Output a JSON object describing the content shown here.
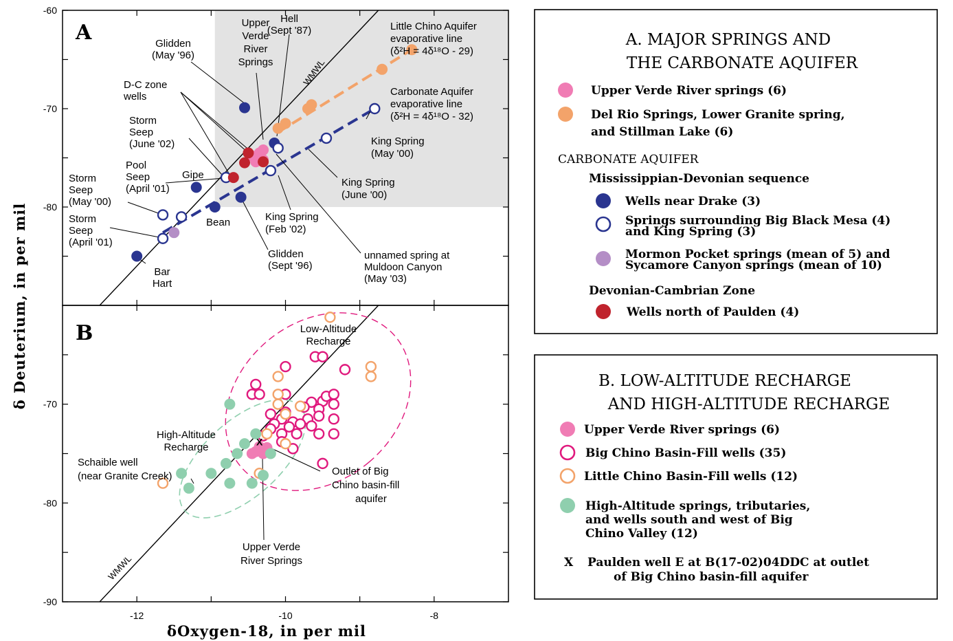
{
  "chart_data": [
    {
      "panel": "A",
      "type": "scatter",
      "ylabel": "δ Deuterium, in per mil",
      "xlim": [
        -13,
        -7
      ],
      "ylim": [
        -90,
        -60
      ],
      "y_ticks": [
        "-60",
        "-70",
        "-80"
      ],
      "shaded_region": {
        "x": [
          -10.95,
          -7
        ],
        "y": [
          -80,
          -60
        ]
      },
      "wmwl_label": "WMWL",
      "series": [
        {
          "name": "Upper Verde River springs (6)",
          "color": "#f07cb4",
          "marker": "filled",
          "points": [
            [
              -10.35,
              -74.5
            ],
            [
              -10.3,
              -74.2
            ],
            [
              -10.45,
              -74.8
            ],
            [
              -10.3,
              -75.2
            ],
            [
              -10.4,
              -75.4
            ],
            [
              -10.35,
              -75.0
            ]
          ]
        },
        {
          "name": "Del Rio Springs, Lower Granite spring, and Stillman Lake (6)",
          "color": "#f3a36a",
          "marker": "filled",
          "points": [
            [
              -10.1,
              -72.0
            ],
            [
              -10.0,
              -71.5
            ],
            [
              -9.7,
              -70.0
            ],
            [
              -9.65,
              -69.6
            ],
            [
              -8.7,
              -66.0
            ],
            [
              -8.3,
              -64.0
            ]
          ]
        },
        {
          "name": "Wells near Drake (3)",
          "color": "#2a3590",
          "marker": "filled",
          "points": [
            [
              -10.55,
              -69.9
            ],
            [
              -10.15,
              -73.5
            ],
            [
              -11.2,
              -78.0
            ],
            [
              -10.95,
              -80.0
            ],
            [
              -10.6,
              -79.0
            ],
            [
              -12.0,
              -85.0
            ]
          ]
        },
        {
          "name": "Springs surrounding Big Black Mesa (4) and King Spring (3)",
          "color": "#2a3590",
          "marker": "open",
          "points": [
            [
              -8.8,
              -70.0
            ],
            [
              -9.45,
              -73.0
            ],
            [
              -10.1,
              -74.0
            ],
            [
              -10.2,
              -76.3
            ],
            [
              -10.8,
              -77.0
            ],
            [
              -11.65,
              -80.8
            ],
            [
              -11.4,
              -81.0
            ],
            [
              -11.65,
              -83.2
            ]
          ]
        },
        {
          "name": "Mormon Pocket springs (mean of 5) and Sycamore Canyon springs (mean of 10)",
          "color": "#b48ec6",
          "marker": "filled",
          "points": [
            [
              -11.5,
              -82.6
            ]
          ]
        },
        {
          "name": "Wells north of Paulden (4)",
          "color": "#c0232d",
          "marker": "filled",
          "points": [
            [
              -10.5,
              -74.5
            ],
            [
              -10.55,
              -75.5
            ],
            [
              -10.3,
              -75.4
            ],
            [
              -10.7,
              -77.0
            ]
          ]
        }
      ],
      "lines": [
        {
          "name": "Little Chino Aquifer evaporative line",
          "color": "#f3a36a",
          "points": [
            [
              -10.1,
              -72.4
            ],
            [
              -8.3,
              -64.0
            ]
          ]
        },
        {
          "name": "Carbonate Aquifer evaporative line",
          "color": "#2a3590",
          "points": [
            [
              -11.65,
              -82.6
            ],
            [
              -8.8,
              -70.0
            ]
          ]
        }
      ],
      "annotations": [
        {
          "lines": [
            "Glidden",
            "(May '96)"
          ]
        },
        {
          "lines": [
            "Upper",
            "Verde",
            "River",
            "Springs"
          ]
        },
        {
          "lines": [
            "Hell",
            "(Sept '87)"
          ]
        },
        {
          "lines": [
            "Little Chino Aquifer",
            "evaporative line",
            "(δ²H = 4δ¹⁸O - 29)"
          ]
        },
        {
          "lines": [
            "D-C zone",
            "wells"
          ]
        },
        {
          "lines": [
            "Carbonate Aquifer",
            "evaporative line",
            "(δ²H = 4δ¹⁸O - 32)"
          ]
        },
        {
          "lines": [
            "Storm",
            "Seep",
            "(June '02)"
          ]
        },
        {
          "lines": [
            "King Spring",
            "(May '00)"
          ]
        },
        {
          "lines": [
            "Pool",
            "Seep",
            "(April '01)"
          ]
        },
        {
          "lines": [
            "Gipe"
          ]
        },
        {
          "lines": [
            "Storm",
            "Seep",
            "(May '00)"
          ]
        },
        {
          "lines": [
            "King Spring",
            "(June '00)"
          ]
        },
        {
          "lines": [
            "Bean"
          ]
        },
        {
          "lines": [
            "King Spring",
            "(Feb '02)"
          ]
        },
        {
          "lines": [
            "Storm",
            "Seep",
            "(April '01)"
          ]
        },
        {
          "lines": [
            "unnamed spring at",
            "Muldoon Canyon",
            "(May '03)"
          ]
        },
        {
          "lines": [
            "Glidden",
            "(Sept '96)"
          ]
        },
        {
          "lines": [
            "Bar",
            "Hart"
          ]
        }
      ]
    },
    {
      "panel": "B",
      "type": "scatter",
      "xlabel": "δOxygen-18, in per mil",
      "xlim": [
        -13,
        -7
      ],
      "ylim": [
        -90,
        -60
      ],
      "x_ticks": [
        "-12",
        "-10",
        "-8"
      ],
      "y_ticks": [
        "-70",
        "-80",
        "-90"
      ],
      "wmwl_label": "WMWL",
      "series": [
        {
          "name": "Upper Verde River springs (6)",
          "color": "#f07cb4",
          "marker": "filled",
          "points": [
            [
              -10.35,
              -74.3
            ],
            [
              -10.3,
              -74.6
            ],
            [
              -10.45,
              -75.0
            ],
            [
              -10.3,
              -75.0
            ],
            [
              -10.4,
              -74.8
            ],
            [
              -10.25,
              -74.4
            ]
          ]
        },
        {
          "name": "Big Chino Basin-Fill wells (35)",
          "color": "#e0197d",
          "marker": "open",
          "points": [
            [
              -9.6,
              -65.2
            ],
            [
              -9.5,
              -65.2
            ],
            [
              -10.0,
              -66.2
            ],
            [
              -9.2,
              -66.5
            ],
            [
              -10.4,
              -68.0
            ],
            [
              -10.45,
              -69.0
            ],
            [
              -10.35,
              -69.0
            ],
            [
              -10.0,
              -69.0
            ],
            [
              -9.65,
              -69.8
            ],
            [
              -9.5,
              -69.7
            ],
            [
              -9.45,
              -69.2
            ],
            [
              -9.35,
              -69.0
            ],
            [
              -9.35,
              -70.0
            ],
            [
              -9.55,
              -70.5
            ],
            [
              -9.75,
              -70.3
            ],
            [
              -10.0,
              -70.8
            ],
            [
              -10.2,
              -71.0
            ],
            [
              -10.05,
              -71.5
            ],
            [
              -9.9,
              -71.8
            ],
            [
              -9.7,
              -71.5
            ],
            [
              -9.55,
              -71.2
            ],
            [
              -9.35,
              -71.5
            ],
            [
              -10.15,
              -72.0
            ],
            [
              -9.95,
              -72.3
            ],
            [
              -9.8,
              -72.0
            ],
            [
              -9.65,
              -72.2
            ],
            [
              -10.2,
              -72.5
            ],
            [
              -10.05,
              -73.0
            ],
            [
              -9.85,
              -73.0
            ],
            [
              -9.55,
              -73.0
            ],
            [
              -9.35,
              -73.0
            ],
            [
              -10.3,
              -73.2
            ],
            [
              -10.05,
              -73.8
            ],
            [
              -9.9,
              -74.5
            ],
            [
              -9.5,
              -76.0
            ]
          ]
        },
        {
          "name": "Little Chino Basin-Fill wells (12)",
          "color": "#f3a36a",
          "marker": "open",
          "points": [
            [
              -9.4,
              -61.2
            ],
            [
              -8.85,
              -66.2
            ],
            [
              -8.85,
              -67.2
            ],
            [
              -10.1,
              -67.2
            ],
            [
              -10.1,
              -69.0
            ],
            [
              -10.1,
              -70.0
            ],
            [
              -9.8,
              -70.2
            ],
            [
              -10.0,
              -71.0
            ],
            [
              -10.25,
              -73.0
            ],
            [
              -10.0,
              -74.0
            ],
            [
              -10.35,
              -77.0
            ],
            [
              -11.65,
              -78.0
            ]
          ]
        },
        {
          "name": "High-Altitude springs, tributaries, and wells south and west of Big Chino Valley (12)",
          "color": "#8fcfae",
          "marker": "filled",
          "points": [
            [
              -10.75,
              -70.0
            ],
            [
              -10.4,
              -73.0
            ],
            [
              -10.55,
              -74.0
            ],
            [
              -10.65,
              -75.0
            ],
            [
              -10.2,
              -75.0
            ],
            [
              -10.8,
              -76.0
            ],
            [
              -11.0,
              -77.0
            ],
            [
              -11.4,
              -77.0
            ],
            [
              -10.75,
              -78.0
            ],
            [
              -10.45,
              -78.0
            ],
            [
              -11.3,
              -78.5
            ],
            [
              -10.3,
              -77.2
            ]
          ]
        }
      ],
      "marker_x": {
        "name": "Paulden well E at B(17-02)04DDC at outlet of Big Chino basin-fill aquifer",
        "symbol": "X",
        "point": [
          -10.35,
          -73.8
        ]
      },
      "envelopes": [
        {
          "name": "Low-Altitude Recharge",
          "color": "#e0197d"
        },
        {
          "name": "High-Altitude Recharge",
          "color": "#8fcfae"
        }
      ],
      "annotations": [
        {
          "lines": [
            "Low-Altitude",
            "Recharge"
          ]
        },
        {
          "lines": [
            "High-Altitude",
            "Recharge"
          ]
        },
        {
          "lines": [
            "Schaible well",
            "(near Granite Creek)"
          ]
        },
        {
          "lines": [
            "Outlet of Big",
            "Chino basin-fill",
            "aquifer"
          ]
        },
        {
          "lines": [
            "Upper Verde",
            "River Springs"
          ]
        }
      ]
    }
  ],
  "legend_a": {
    "title_lines": [
      "A. MAJOR SPRINGS AND",
      "THE CARBONATE AQUIFER"
    ],
    "item_upper_verde": "Upper Verde River springs (6)",
    "item_del_rio_lines": [
      "Del Rio Springs, Lower Granite spring,",
      "and Stillman Lake (6)"
    ],
    "heading_carbonate": "CARBONATE AQUIFER",
    "heading_miss_dev": "Mississippian-Devonian sequence",
    "item_drake": "Wells near Drake (3)",
    "item_black_mesa_lines": [
      "Springs surrounding Big Black Mesa (4)",
      "and King Spring (3)"
    ],
    "item_mormon_lines": [
      "Mormon Pocket springs (mean of 5) and",
      "Sycamore Canyon springs (mean of 10)"
    ],
    "heading_dev_camb": "Devonian-Cambrian Zone",
    "item_paulden": "Wells north of Paulden (4)"
  },
  "legend_b": {
    "title_lines": [
      "B. LOW-ALTITUDE RECHARGE",
      "AND HIGH-ALTITUDE RECHARGE"
    ],
    "item_upper_verde": "Upper Verde River springs (6)",
    "item_big_chino": "Big Chino Basin-Fill wells (35)",
    "item_little_chino": "Little Chino Basin-Fill wells (12)",
    "item_high_alt_lines": [
      "High-Altitude springs, tributaries,",
      "and wells south and west of Big",
      "Chino Valley (12)"
    ],
    "item_x_symbol": "X",
    "item_x_lines": [
      "Paulden well E at B(17-02)04DDC at outlet",
      "of Big Chino basin-fill aquifer"
    ]
  },
  "colors": {
    "pink": "#f07cb4",
    "orange": "#f3a36a",
    "navy": "#2a3590",
    "lavender": "#b48ec6",
    "red": "#c0232d",
    "magenta": "#e0197d",
    "green": "#8fcfae",
    "shade": "#e3e3e3"
  }
}
